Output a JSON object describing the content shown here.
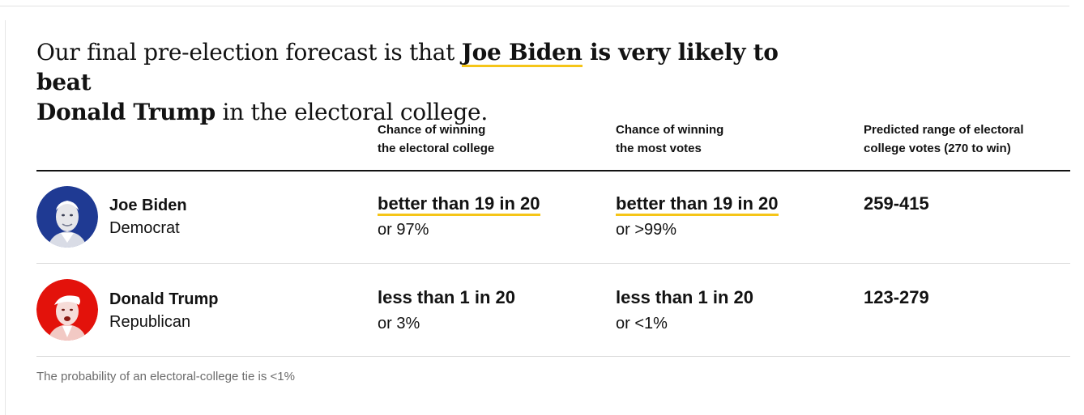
{
  "headline": {
    "part1": "Our final pre-election forecast is that ",
    "winner": "Joe Biden",
    "part2": " is very likely to beat",
    "loser": "Donald Trump",
    "part3": " in the electoral college."
  },
  "columns": {
    "electoral": [
      "Chance of winning",
      "the electoral college"
    ],
    "popular": [
      "Chance of winning",
      "the most votes"
    ],
    "range": [
      "Predicted range of electoral",
      "college votes (270 to win)"
    ]
  },
  "candidates": [
    {
      "name": "Joe Biden",
      "party": "Democrat",
      "electoral_chance": "better than 19 in 20",
      "electoral_pct": "or 97%",
      "popular_chance": "better than 19 in 20",
      "popular_pct": "or >99%",
      "vote_range": "259-415",
      "color": "#1f3a93"
    },
    {
      "name": "Donald Trump",
      "party": "Republican",
      "electoral_chance": "less than 1 in 20",
      "electoral_pct": "or 3%",
      "popular_chance": "less than 1 in 20",
      "popular_pct": "or <1%",
      "vote_range": "123-279",
      "color": "#e3120b"
    }
  ],
  "footnote": "The probability of an electoral-college tie is <1%",
  "colors": {
    "highlight": "#f5c518",
    "rule": "#121212",
    "muted": "#6b6b6b"
  }
}
